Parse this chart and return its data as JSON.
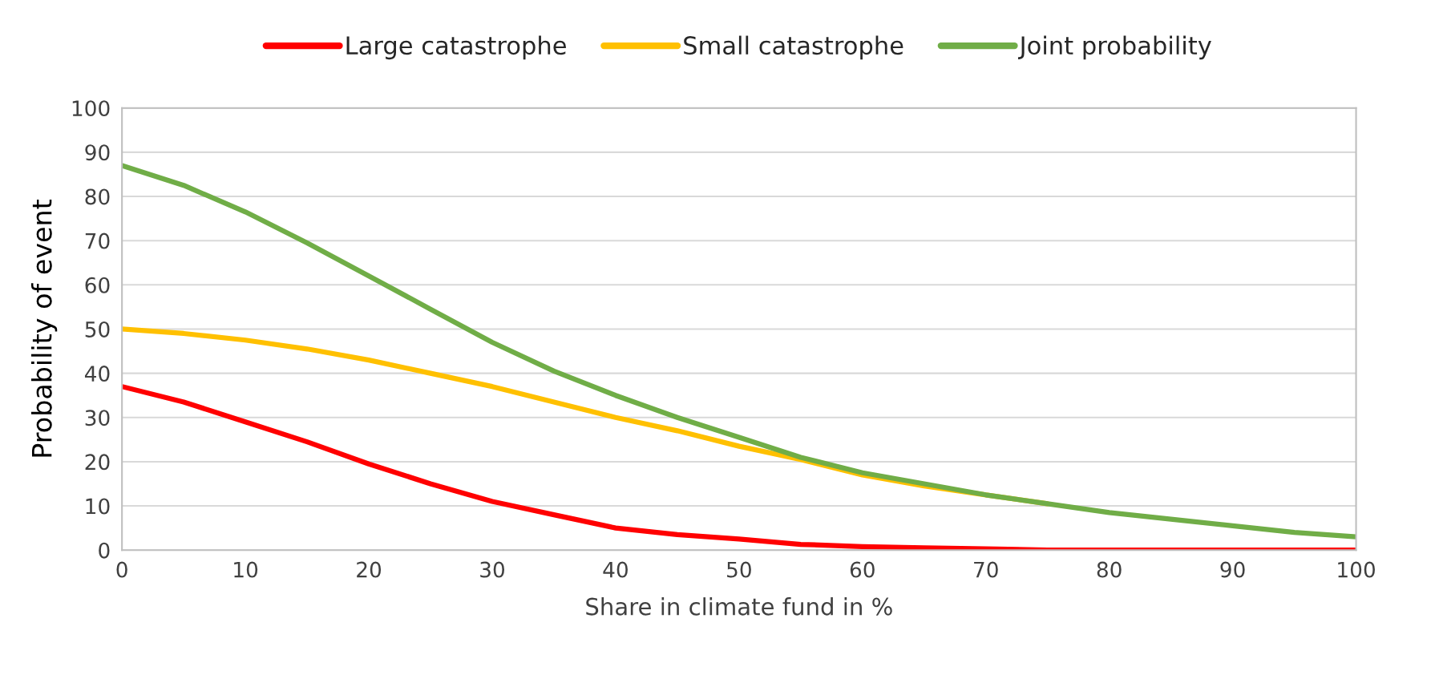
{
  "chart_data": {
    "type": "line",
    "xlabel": "Share in climate fund in %",
    "ylabel": "Probability of event",
    "x": [
      0,
      5,
      10,
      15,
      20,
      25,
      30,
      35,
      40,
      45,
      50,
      55,
      60,
      65,
      70,
      75,
      80,
      85,
      90,
      95,
      100
    ],
    "series": [
      {
        "name": "Large catastrophe",
        "color": "#ff0000",
        "values": [
          37,
          33.5,
          29,
          24.5,
          19.5,
          15,
          11,
          8,
          5,
          3.5,
          2.5,
          1.3,
          0.8,
          0.5,
          0.3,
          0,
          0,
          0,
          0,
          0,
          0
        ]
      },
      {
        "name": "Small catastrophe",
        "color": "#ffc000",
        "values": [
          50,
          49,
          47.5,
          45.5,
          43,
          40,
          37,
          33.5,
          30,
          27,
          23.5,
          20.5,
          17,
          14.5,
          12.5,
          10.5,
          null,
          null,
          null,
          null,
          null
        ]
      },
      {
        "name": "Joint probability",
        "color": "#70ad47",
        "values": [
          87,
          82.5,
          76.5,
          69.5,
          62,
          54.5,
          47,
          40.5,
          35,
          30,
          25.5,
          21,
          17.5,
          15,
          12.5,
          10.5,
          8.5,
          7,
          5.5,
          4,
          3
        ]
      }
    ],
    "xlim": [
      0,
      100
    ],
    "xticks": [
      0,
      10,
      20,
      30,
      40,
      50,
      60,
      70,
      80,
      90,
      100
    ],
    "ylim": [
      0,
      100
    ],
    "yticks": [
      0,
      10,
      20,
      30,
      40,
      50,
      60,
      70,
      80,
      90,
      100
    ],
    "grid": "y",
    "legend": "top",
    "marker": "none",
    "line_style": "solid"
  }
}
